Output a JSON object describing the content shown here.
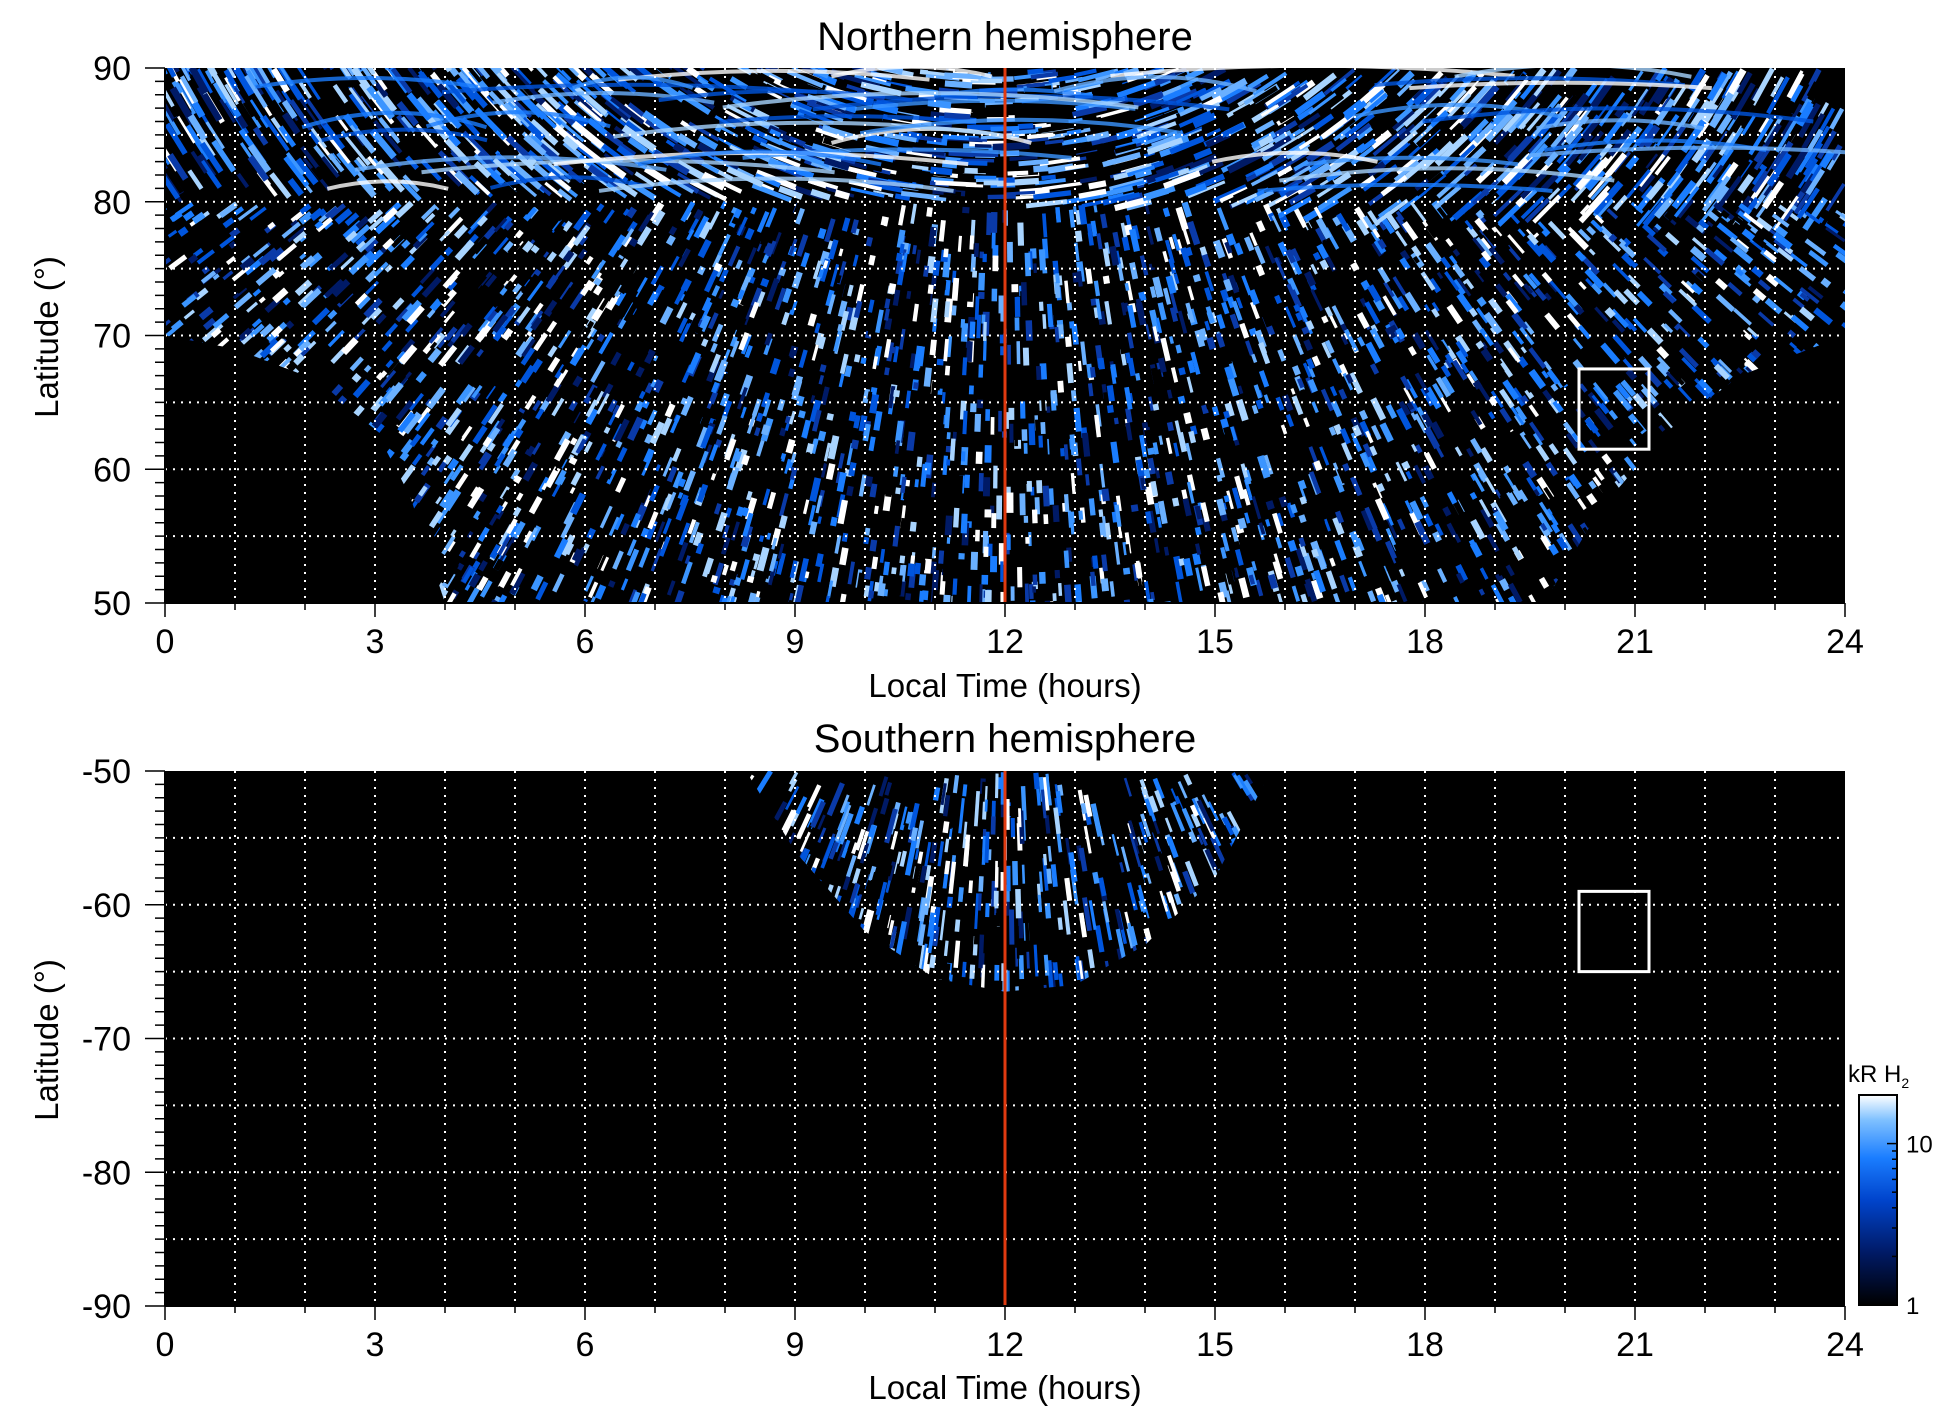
{
  "chart_data": [
    {
      "type": "heatmap",
      "title": "Northern hemisphere",
      "xlabel": "Local Time (hours)",
      "ylabel": "Latitude (°)",
      "xlim": [
        0,
        24
      ],
      "ylim": [
        50,
        90
      ],
      "xticks": [
        "0",
        "3",
        "6",
        "9",
        "12",
        "15",
        "18",
        "21",
        "24"
      ],
      "yticks": [
        "50",
        "60",
        "70",
        "80",
        "90"
      ],
      "grid": true,
      "noon_line_lt": 12,
      "noon_line_color": "#e03a10",
      "box": {
        "lt": [
          20.2,
          21.2
        ],
        "lat": [
          61.5,
          67.5
        ]
      },
      "coverage": [
        {
          "lt": 0,
          "min_lat": 70
        },
        {
          "lt": 1,
          "min_lat": 69
        },
        {
          "lt": 2,
          "min_lat": 67
        },
        {
          "lt": 3,
          "min_lat": 63
        },
        {
          "lt": 3.5,
          "min_lat": 58
        },
        {
          "lt": 4,
          "min_lat": 50
        },
        {
          "lt": 19.7,
          "min_lat": 50
        },
        {
          "lt": 20.5,
          "min_lat": 57
        },
        {
          "lt": 21.5,
          "min_lat": 63
        },
        {
          "lt": 22.5,
          "min_lat": 67
        },
        {
          "lt": 23.5,
          "min_lat": 69
        },
        {
          "lt": 24,
          "min_lat": 70
        }
      ]
    },
    {
      "type": "heatmap",
      "title": "Southern hemisphere",
      "xlabel": "Local Time (hours)",
      "ylabel": "Latitude (°)",
      "xlim": [
        0,
        24
      ],
      "ylim": [
        -90,
        -50
      ],
      "xticks": [
        "0",
        "3",
        "6",
        "9",
        "12",
        "15",
        "18",
        "21",
        "24"
      ],
      "yticks": [
        "-50",
        "-60",
        "-70",
        "-80",
        "-90"
      ],
      "grid": true,
      "noon_line_lt": 12,
      "noon_line_color": "#e03a10",
      "box": {
        "lt": [
          20.2,
          21.2
        ],
        "lat": [
          -65,
          -59
        ]
      },
      "coverage": [
        {
          "lt": 8.3,
          "min_lat": -50
        },
        {
          "lt": 9.0,
          "min_lat": -56
        },
        {
          "lt": 10.0,
          "min_lat": -62
        },
        {
          "lt": 11.0,
          "min_lat": -65.5
        },
        {
          "lt": 12.0,
          "min_lat": -66.5
        },
        {
          "lt": 13.0,
          "min_lat": -66
        },
        {
          "lt": 14.0,
          "min_lat": -63
        },
        {
          "lt": 15.0,
          "min_lat": -58
        },
        {
          "lt": 15.8,
          "min_lat": -50
        }
      ]
    }
  ],
  "colorbar": {
    "title": "kR H",
    "title_subscript": "2",
    "scale": "log",
    "range": [
      1,
      20
    ],
    "tick_labels": [
      "1",
      "10"
    ],
    "colors": [
      "#000000",
      "#001a66",
      "#0044cc",
      "#1a7dff",
      "#7ec0ff",
      "#ffffff"
    ]
  }
}
